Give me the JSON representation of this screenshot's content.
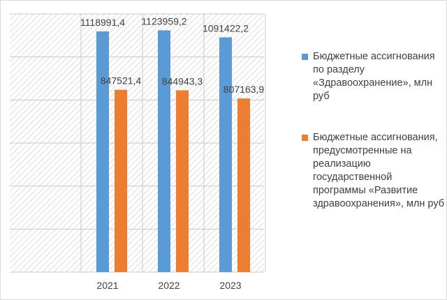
{
  "chart_data": {
    "type": "bar",
    "categories": [
      "2021",
      "2022",
      "2023"
    ],
    "series": [
      {
        "name": "Бюджетные ассигнования по разделу «Здравоохранение», млн руб",
        "values": [
          1118991.4,
          1123959.2,
          1091422.2
        ],
        "value_labels": [
          "1118991,4",
          "1123959,2",
          "1091422,2"
        ],
        "color": "#5b9bd5"
      },
      {
        "name": "Бюджетные ассигнования, предусмотренные на реализацию государственной программы «Развитие здравоохранения», млн руб",
        "values": [
          847521.4,
          844943.3,
          807163.9
        ],
        "value_labels": [
          "847521,4",
          "844943,3",
          "807163,9"
        ],
        "color": "#ed7d31"
      }
    ],
    "ylim": [
      0,
      1200000
    ],
    "grid": true,
    "legend_position": "right",
    "title": "",
    "xlabel": "",
    "ylabel": ""
  }
}
